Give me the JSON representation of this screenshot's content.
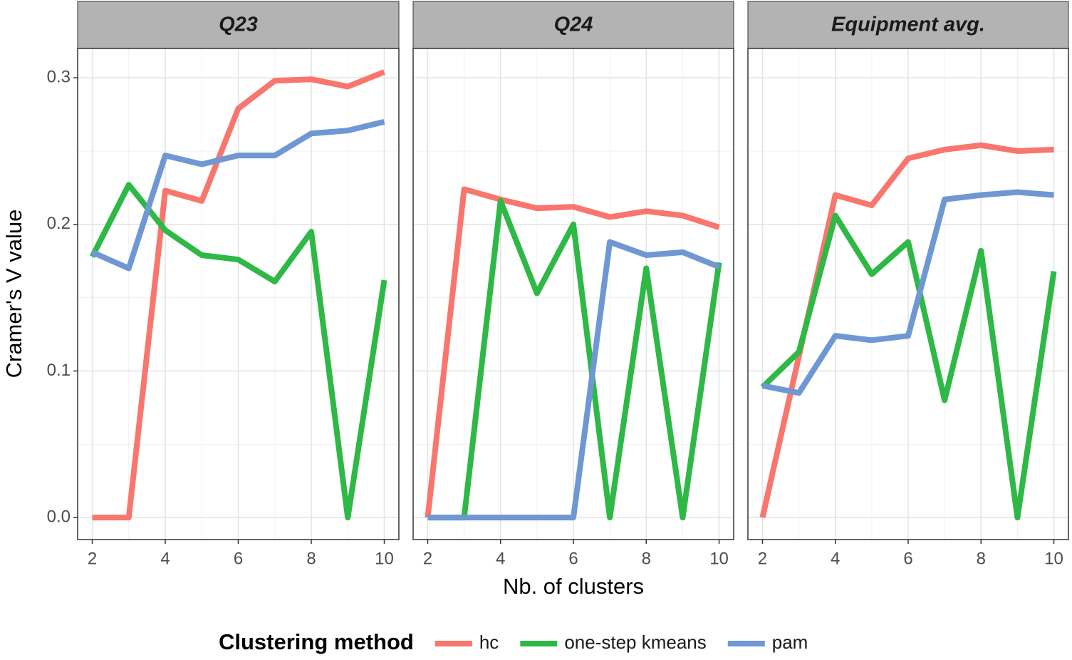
{
  "chart_data": [
    {
      "type": "line",
      "title": "Q23",
      "xlim": [
        1.6,
        10.4
      ],
      "ylim": [
        -0.015,
        0.32
      ],
      "xticks": [
        2,
        4,
        6,
        8,
        10
      ],
      "yticks": [
        {
          "value": 0,
          "label": "0.0"
        },
        0.1,
        0.2,
        0.3
      ],
      "grid": true,
      "x": [
        2,
        3,
        4,
        5,
        6,
        7,
        8,
        9,
        10
      ],
      "series": [
        {
          "name": "hc",
          "color": "#f8766d",
          "values": [
            0,
            0,
            0.223,
            0.216,
            0.279,
            0.298,
            0.299,
            0.294,
            0.304
          ]
        },
        {
          "name": "one-step kmeans",
          "color": "#2eb846",
          "values": [
            0.178,
            0.227,
            0.196,
            0.179,
            0.176,
            0.161,
            0.195,
            0,
            0.162
          ]
        },
        {
          "name": "pam",
          "color": "#6e97d4",
          "values": [
            0.181,
            0.17,
            0.247,
            0.241,
            0.247,
            0.247,
            0.262,
            0.264,
            0.27
          ]
        }
      ]
    },
    {
      "type": "line",
      "title": "Q24",
      "xlim": [
        1.6,
        10.4
      ],
      "ylim": [
        -0.015,
        0.32
      ],
      "xticks": [
        2,
        4,
        6,
        8,
        10
      ],
      "yticks": [
        {
          "value": 0,
          "label": "0.0"
        },
        0.1,
        0.2,
        0.3
      ],
      "grid": true,
      "x": [
        2,
        3,
        4,
        5,
        6,
        7,
        8,
        9,
        10
      ],
      "series": [
        {
          "name": "hc",
          "color": "#f8766d",
          "values": [
            0,
            0.224,
            0.217,
            0.211,
            0.212,
            0.205,
            0.209,
            0.206,
            0.198
          ]
        },
        {
          "name": "one-step kmeans",
          "color": "#2eb846",
          "values": [
            0,
            0,
            0.216,
            0.153,
            0.2,
            0,
            0.17,
            0,
            0.174
          ]
        },
        {
          "name": "pam",
          "color": "#6e97d4",
          "values": [
            0,
            0,
            0,
            0,
            0,
            0.188,
            0.179,
            0.181,
            0.171
          ]
        }
      ]
    },
    {
      "type": "line",
      "title": "Equipment avg.",
      "xlim": [
        1.6,
        10.4
      ],
      "ylim": [
        -0.015,
        0.32
      ],
      "xticks": [
        2,
        4,
        6,
        8,
        10
      ],
      "yticks": [
        {
          "value": 0,
          "label": "0.0"
        },
        0.1,
        0.2,
        0.3
      ],
      "grid": true,
      "x": [
        2,
        3,
        4,
        5,
        6,
        7,
        8,
        9,
        10
      ],
      "series": [
        {
          "name": "hc",
          "color": "#f8766d",
          "values": [
            0,
            0.11,
            0.22,
            0.213,
            0.245,
            0.251,
            0.254,
            0.25,
            0.251
          ]
        },
        {
          "name": "one-step kmeans",
          "color": "#2eb846",
          "values": [
            0.089,
            0.113,
            0.206,
            0.166,
            0.188,
            0.08,
            0.182,
            0,
            0.168
          ]
        },
        {
          "name": "pam",
          "color": "#6e97d4",
          "values": [
            0.09,
            0.085,
            0.124,
            0.121,
            0.124,
            0.217,
            0.22,
            0.222,
            0.22
          ]
        }
      ]
    }
  ],
  "shared": {
    "xlabel": "Nb. of clusters",
    "ylabel": "Cramer's V value",
    "legend_title": "Clustering method",
    "legend_position": "bottom"
  }
}
